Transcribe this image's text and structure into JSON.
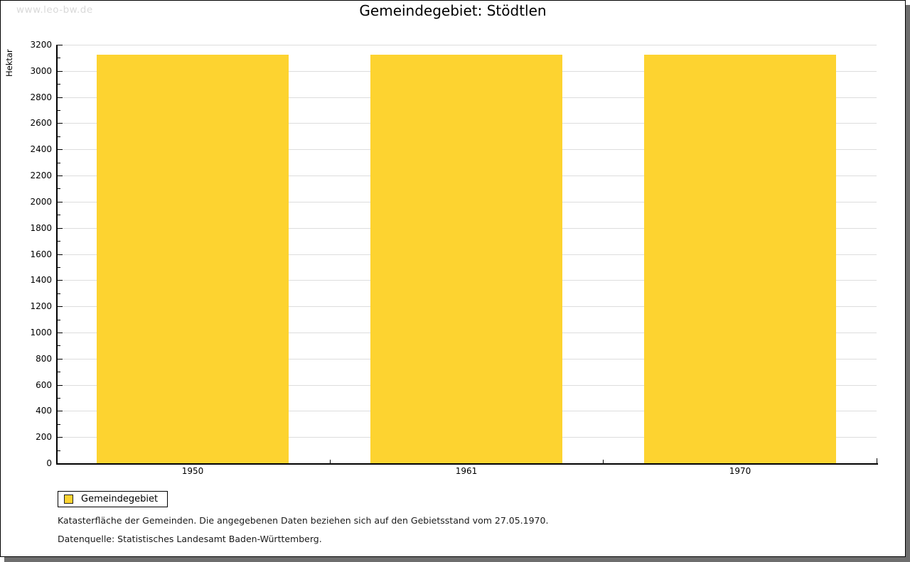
{
  "page": {
    "watermark": "www.leo-bw.de",
    "title": "Gemeindegebiet: Stödtlen"
  },
  "chart_data": {
    "type": "bar",
    "title": "Gemeindegebiet: Stödtlen",
    "ylabel": "Hektar",
    "xlabel": "",
    "categories": [
      "1950",
      "1961",
      "1970"
    ],
    "series": [
      {
        "name": "Gemeindegebiet",
        "values": [
          3124,
          3124,
          3124
        ]
      }
    ],
    "ylim": [
      0,
      3200
    ],
    "ytick_major": 200,
    "ytick_minor": 100,
    "grid": true,
    "legend_position": "bottom-left",
    "bar_color": "#FDD330",
    "grid_color": "#dddddd",
    "axis_color": "#000000"
  },
  "legend": {
    "label": "Gemeindegebiet"
  },
  "footer": {
    "note": "Katasterfläche der Gemeinden. Die angegebenen Daten beziehen sich auf den Gebietsstand vom 27.05.1970.",
    "source": "Datenquelle: Statistisches Landesamt Baden-Württemberg."
  }
}
